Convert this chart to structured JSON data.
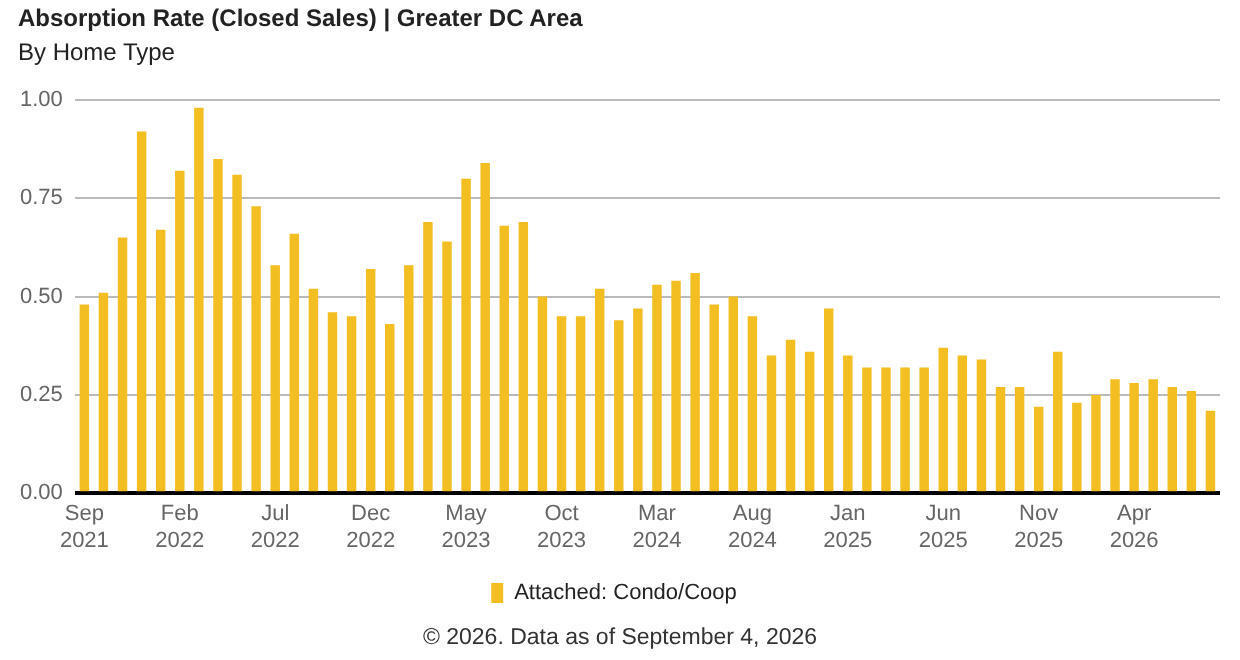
{
  "chart_data": {
    "type": "bar",
    "title": "Absorption Rate (Closed Sales) | Greater DC Area",
    "subtitle": "By Home Type",
    "categories": [
      "Sep 2021",
      null,
      null,
      null,
      null,
      "Feb 2022",
      null,
      null,
      null,
      null,
      "Jul 2022",
      null,
      null,
      null,
      null,
      "Dec 2022",
      null,
      null,
      null,
      null,
      "May 2023",
      null,
      null,
      null,
      null,
      "Oct 2023",
      null,
      null,
      null,
      null,
      "Mar 2024",
      null,
      null,
      null,
      null,
      "Aug 2024",
      null,
      null,
      null,
      null,
      "Jan 2025",
      null,
      null,
      null,
      null,
      "Jun 2025",
      null,
      null,
      null,
      null,
      "Nov 2025",
      null,
      null,
      null,
      null,
      "Apr 2026",
      null,
      null,
      null,
      null
    ],
    "series": [
      {
        "name": "Attached: Condo/Coop",
        "color": "#f2be22",
        "values": [
          0.48,
          0.51,
          0.65,
          0.92,
          0.67,
          0.82,
          0.98,
          0.85,
          0.81,
          0.73,
          0.58,
          0.66,
          0.52,
          0.46,
          0.45,
          0.57,
          0.43,
          0.58,
          0.69,
          0.64,
          0.8,
          0.84,
          0.68,
          0.69,
          0.5,
          0.45,
          0.45,
          0.52,
          0.44,
          0.47,
          0.53,
          0.54,
          0.56,
          0.48,
          0.5,
          0.45,
          0.35,
          0.39,
          0.36,
          0.47,
          0.35,
          0.32,
          0.32,
          0.32,
          0.32,
          0.37,
          0.35,
          0.34,
          0.27,
          0.27,
          0.22,
          0.36,
          0.23,
          0.25,
          0.29,
          0.28,
          0.29,
          0.27,
          0.26,
          0.21
        ]
      }
    ],
    "ylim": [
      0,
      1
    ],
    "yticks": [
      {
        "value": 0,
        "label": "0.00"
      },
      {
        "value": 0.25,
        "label": "0.25"
      },
      {
        "value": 0.5,
        "label": "0.50"
      },
      {
        "value": 0.75,
        "label": "0.75"
      },
      {
        "value": 1,
        "label": "1.00"
      }
    ],
    "grid": "y",
    "legend": "bottom",
    "annotations": [
      "© 2026. Data as of September 4, 2026"
    ]
  }
}
